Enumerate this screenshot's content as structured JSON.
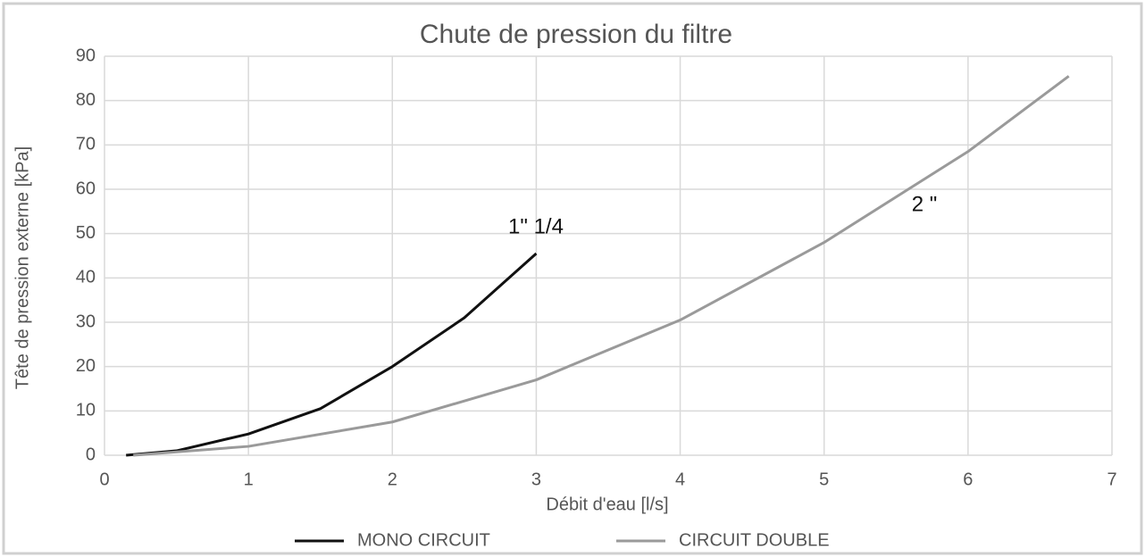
{
  "chart_data": {
    "type": "line",
    "title": "Chute de pression du filtre",
    "x_label": "Débit d'eau [l/s]",
    "y_label": "Tête de pression externe [kPa]",
    "xlim": [
      0,
      7
    ],
    "xticks": [
      0,
      1,
      2,
      3,
      4,
      5,
      6,
      7
    ],
    "ylim": [
      0,
      90
    ],
    "yticks": [
      0,
      10,
      20,
      30,
      40,
      50,
      60,
      70,
      80,
      90
    ],
    "grid": true,
    "legend": "bottom",
    "series": [
      {
        "name": "MONO CIRCUIT",
        "color": "#111111",
        "x": [
          0.15,
          0.5,
          1,
          1.5,
          2,
          2.5,
          3
        ],
        "values": [
          0,
          1,
          4.8,
          10.5,
          20,
          31,
          45.5
        ]
      },
      {
        "name": "CIRCUIT DOUBLE",
        "color": "#9a9a9a",
        "x": [
          0.2,
          1,
          2,
          3,
          4,
          5,
          6,
          6.7
        ],
        "values": [
          0,
          2,
          7.5,
          17,
          30.5,
          48,
          68.5,
          85.5
        ]
      }
    ],
    "annotations": [
      "1\"  1/4",
      "2 \""
    ]
  }
}
